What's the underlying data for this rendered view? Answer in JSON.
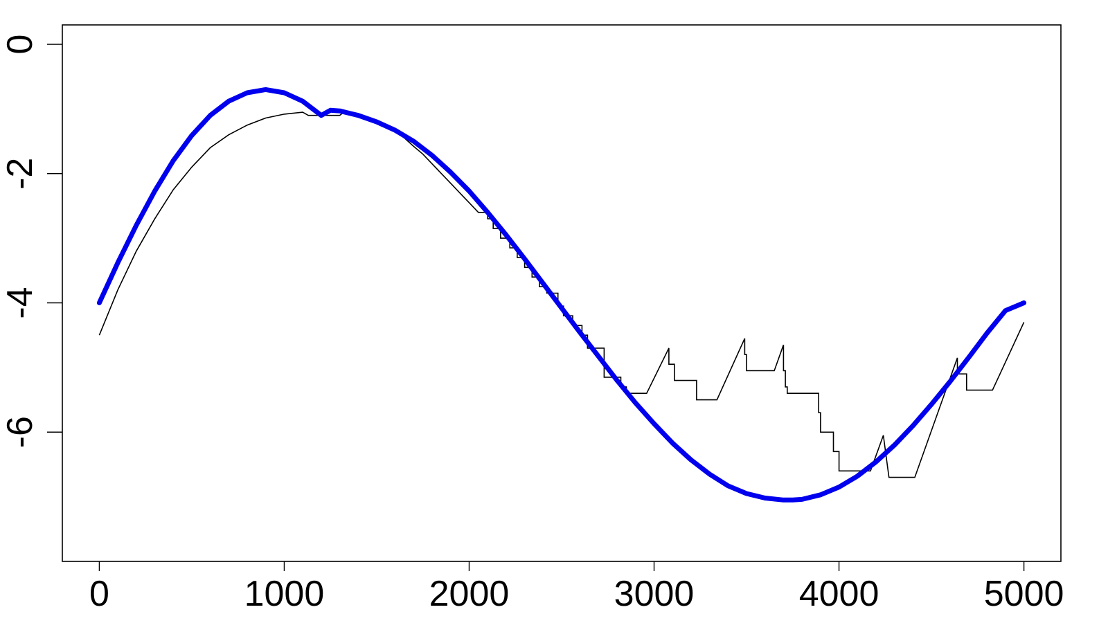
{
  "chart_data": {
    "type": "line",
    "title": "",
    "xlabel": "",
    "ylabel": "",
    "xlim": [
      -200,
      5200
    ],
    "ylim": [
      -8,
      0.3
    ],
    "x_ticks": [
      0,
      1000,
      2000,
      3000,
      4000,
      5000
    ],
    "y_ticks": [
      0,
      -2,
      -4,
      -6
    ],
    "x_tick_labels": [
      "0",
      "1000",
      "2000",
      "3000",
      "4000",
      "5000"
    ],
    "y_tick_labels": [
      "0",
      "-2",
      "-4",
      "-6"
    ],
    "grid": false,
    "legend": "none",
    "series": [
      {
        "style": "thin black step/line",
        "color": "#000000",
        "x": [
          0,
          100,
          200,
          300,
          400,
          500,
          600,
          700,
          800,
          900,
          1000,
          1100,
          1130,
          1300,
          1330,
          1400,
          1500,
          1550,
          1600,
          1650,
          1700,
          1750,
          1800,
          1850,
          1900,
          1950,
          2000,
          2050,
          2100,
          2100,
          2130,
          2130,
          2170,
          2170,
          2220,
          2220,
          2260,
          2260,
          2300,
          2300,
          2340,
          2340,
          2380,
          2380,
          2420,
          2420,
          2480,
          2480,
          2510,
          2510,
          2560,
          2560,
          2610,
          2610,
          2640,
          2640,
          2730,
          2730,
          2820,
          2820,
          2850,
          2850,
          2960,
          3080,
          3080,
          3110,
          3110,
          3230,
          3230,
          3340,
          3490,
          3490,
          3500,
          3500,
          3650,
          3700,
          3700,
          3710,
          3710,
          3720,
          3720,
          3890,
          3890,
          3900,
          3900,
          3970,
          3970,
          4000,
          4000,
          4170,
          4240,
          4240,
          4270,
          4270,
          4410,
          4640,
          4640,
          4690,
          4690,
          4830,
          5000
        ],
        "y": [
          -4.5,
          -3.8,
          -3.2,
          -2.7,
          -2.25,
          -1.9,
          -1.6,
          -1.4,
          -1.25,
          -1.14,
          -1.08,
          -1.05,
          -1.1,
          -1.1,
          -1.03,
          -1.08,
          -1.18,
          -1.25,
          -1.35,
          -1.45,
          -1.58,
          -1.7,
          -1.85,
          -2.0,
          -2.15,
          -2.3,
          -2.45,
          -2.6,
          -2.6,
          -2.7,
          -2.7,
          -2.85,
          -2.85,
          -3.0,
          -3.0,
          -3.15,
          -3.15,
          -3.3,
          -3.3,
          -3.45,
          -3.45,
          -3.6,
          -3.6,
          -3.75,
          -3.75,
          -3.85,
          -3.85,
          -4.05,
          -4.05,
          -4.2,
          -4.2,
          -4.35,
          -4.35,
          -4.5,
          -4.5,
          -4.7,
          -4.7,
          -5.15,
          -5.15,
          -5.3,
          -5.3,
          -5.4,
          -5.4,
          -4.7,
          -4.95,
          -4.95,
          -5.2,
          -5.2,
          -5.5,
          -5.5,
          -4.55,
          -4.8,
          -4.8,
          -5.05,
          -5.05,
          -4.65,
          -5.05,
          -5.05,
          -5.3,
          -5.3,
          -5.4,
          -5.4,
          -5.7,
          -5.7,
          -6.0,
          -6.0,
          -6.3,
          -6.3,
          -6.6,
          -6.6,
          -6.05,
          -6.05,
          -6.7,
          -6.7,
          -6.7,
          -4.85,
          -5.1,
          -5.1,
          -5.35,
          -5.35,
          -4.3
        ]
      },
      {
        "style": "thick blue smooth",
        "color": "#0000ee",
        "x": [
          0,
          100,
          200,
          300,
          400,
          500,
          600,
          700,
          800,
          900,
          1000,
          1100,
          1200,
          1250,
          1300,
          1400,
          1500,
          1600,
          1700,
          1800,
          1900,
          2000,
          2100,
          2200,
          2300,
          2400,
          2500,
          2600,
          2700,
          2800,
          2900,
          3000,
          3100,
          3200,
          3300,
          3400,
          3500,
          3600,
          3700,
          3750,
          3800,
          3900,
          4000,
          4100,
          4200,
          4300,
          4400,
          4500,
          4600,
          4700,
          4800,
          4900,
          5000
        ],
        "y": [
          -4.0,
          -3.38,
          -2.8,
          -2.27,
          -1.8,
          -1.41,
          -1.1,
          -0.88,
          -0.75,
          -0.7,
          -0.75,
          -0.88,
          -1.1,
          -1.02,
          -1.03,
          -1.1,
          -1.2,
          -1.33,
          -1.5,
          -1.72,
          -1.98,
          -2.27,
          -2.6,
          -2.95,
          -3.32,
          -3.7,
          -4.08,
          -4.46,
          -4.83,
          -5.2,
          -5.55,
          -5.87,
          -6.17,
          -6.43,
          -6.65,
          -6.83,
          -6.95,
          -7.02,
          -7.05,
          -7.05,
          -7.04,
          -6.97,
          -6.85,
          -6.68,
          -6.46,
          -6.2,
          -5.9,
          -5.57,
          -5.22,
          -4.85,
          -4.47,
          -4.12,
          -4.0
        ]
      }
    ]
  }
}
